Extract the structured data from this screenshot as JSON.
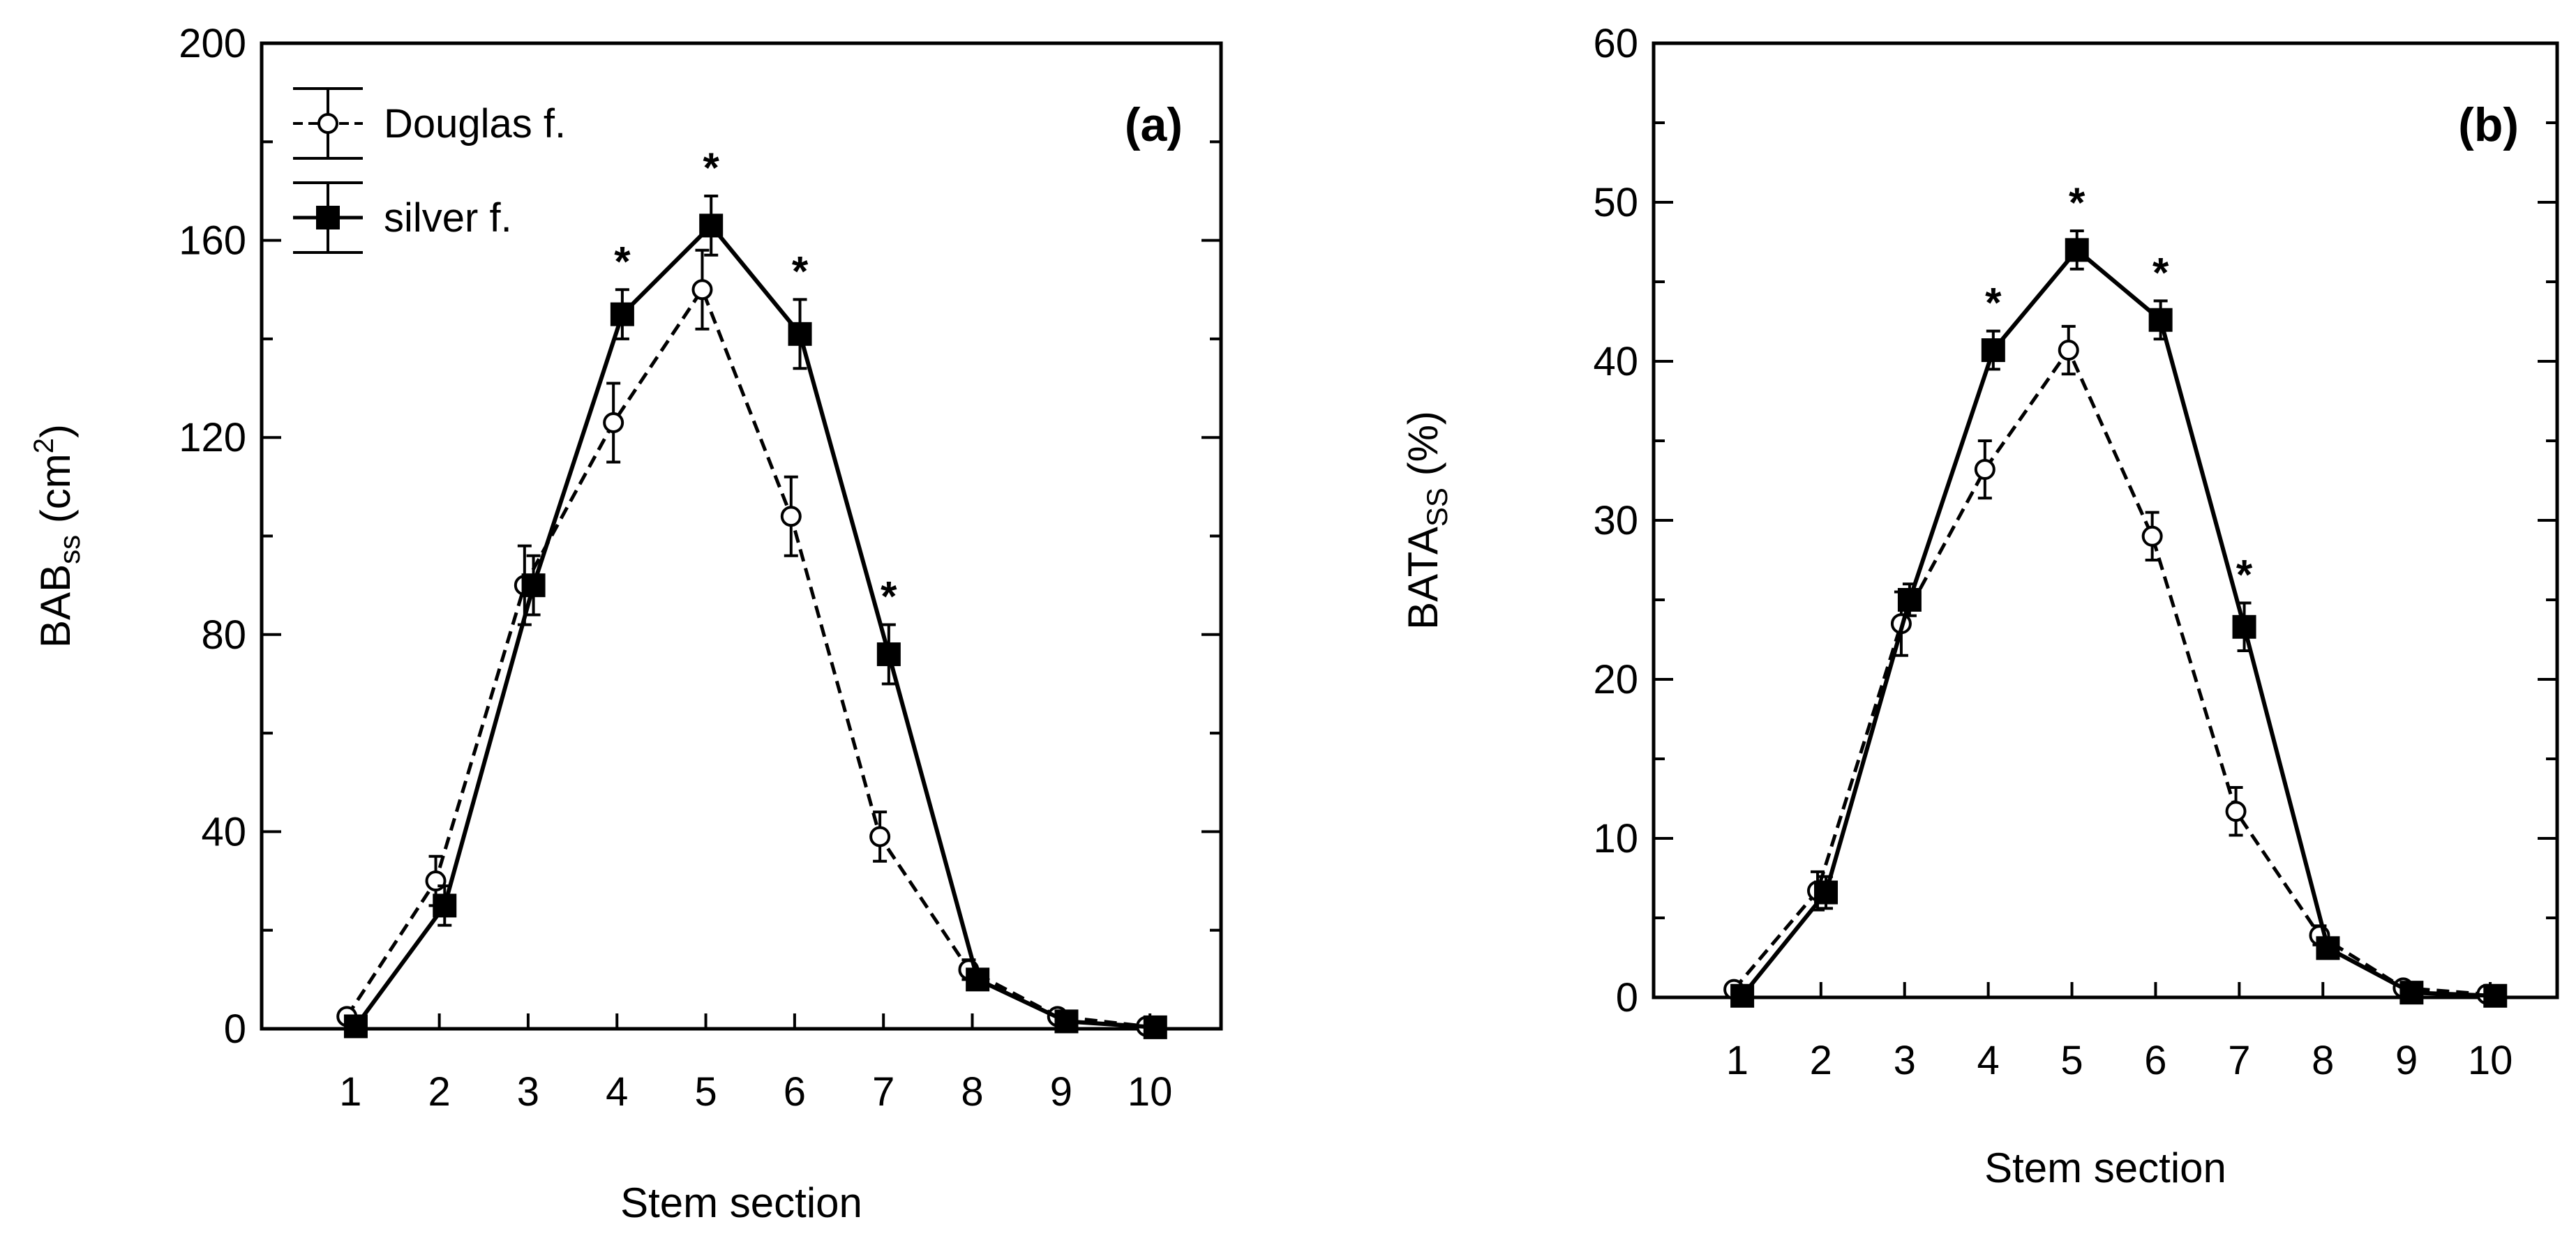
{
  "chart_data": [
    {
      "type": "line",
      "panel_label": "(a)",
      "xlabel": "Stem section",
      "ylabel": {
        "main": "BAB",
        "sub": "ss",
        "unit_pre": " (cm",
        "unit_sup": "2",
        "unit_post": ")"
      },
      "x": [
        1,
        2,
        3,
        4,
        5,
        6,
        7,
        8,
        9,
        10
      ],
      "xticks": [
        "1",
        "2",
        "3",
        "4",
        "5",
        "6",
        "7",
        "8",
        "9",
        "10"
      ],
      "ylim": [
        0,
        200
      ],
      "yticks": [
        "0",
        "40",
        "80",
        "120",
        "160",
        "200"
      ],
      "series": [
        {
          "name": "Douglas f.",
          "style": "dashed-open-circle",
          "values": [
            2.5,
            30,
            90,
            123,
            150,
            104,
            39,
            12,
            2.5,
            0.5
          ],
          "errors": [
            1,
            5,
            8,
            8,
            8,
            8,
            5,
            2,
            1,
            0.5
          ]
        },
        {
          "name": "silver f.",
          "style": "solid-filled-square",
          "values": [
            0.5,
            25,
            90,
            145,
            163,
            141,
            76,
            10,
            1.5,
            0.3
          ],
          "errors": [
            0.5,
            4,
            6,
            5,
            6,
            7,
            6,
            2,
            1,
            0.3
          ]
        }
      ],
      "significance": [
        {
          "x": 4,
          "label": "*"
        },
        {
          "x": 5,
          "label": "*"
        },
        {
          "x": 6,
          "label": "*"
        },
        {
          "x": 7,
          "label": "*"
        }
      ],
      "legend": {
        "entries": [
          "Douglas f.",
          "silver f."
        ],
        "placement": "top-left"
      }
    },
    {
      "type": "line",
      "panel_label": "(b)",
      "xlabel": "Stem section",
      "ylabel": {
        "main": "BATA",
        "sub": "SS",
        "unit_pre": " (%)",
        "unit_sup": "",
        "unit_post": ""
      },
      "x": [
        1,
        2,
        3,
        4,
        5,
        6,
        7,
        8,
        9,
        10
      ],
      "xticks": [
        "1",
        "2",
        "3",
        "4",
        "5",
        "6",
        "7",
        "8",
        "9",
        "10"
      ],
      "ylim": [
        0,
        60
      ],
      "yticks": [
        "0",
        "10",
        "20",
        "30",
        "40",
        "50",
        "60"
      ],
      "series": [
        {
          "name": "Douglas f.",
          "style": "dashed-open-circle",
          "values": [
            0.5,
            6.7,
            23.5,
            33.2,
            40.7,
            29,
            11.7,
            3.9,
            0.6,
            0.2
          ],
          "errors": [
            0.2,
            1.2,
            2,
            1.8,
            1.5,
            1.5,
            1.5,
            0.6,
            0.3,
            0.1
          ]
        },
        {
          "name": "silver f.",
          "style": "solid-filled-square",
          "values": [
            0.1,
            6.6,
            25,
            40.7,
            47,
            42.6,
            23.3,
            3.1,
            0.3,
            0.1
          ],
          "errors": [
            0.1,
            1,
            1,
            1.2,
            1.2,
            1.2,
            1.5,
            0.5,
            0.2,
            0.1
          ]
        }
      ],
      "significance": [
        {
          "x": 4,
          "label": "*"
        },
        {
          "x": 5,
          "label": "*"
        },
        {
          "x": 6,
          "label": "*"
        },
        {
          "x": 7,
          "label": "*"
        }
      ],
      "legend": null
    }
  ]
}
